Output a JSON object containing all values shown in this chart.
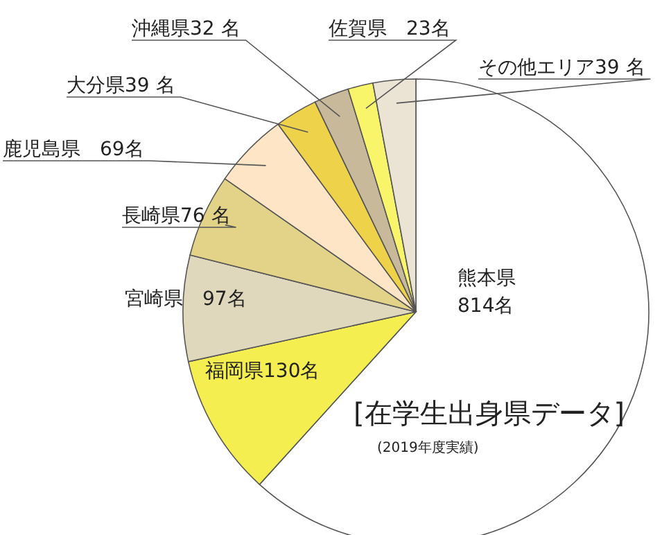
{
  "chart_data": {
    "type": "pie",
    "title": "[在学生出身県データ]",
    "subtitle": "(2019年度実績)",
    "categories": [
      "熊本県",
      "福岡県",
      "宮崎県",
      "長崎県",
      "鹿児島県",
      "大分県",
      "沖縄県",
      "佐賀県",
      "その他エリア"
    ],
    "values": [
      814,
      130,
      97,
      76,
      69,
      39,
      32,
      23,
      39
    ],
    "value_labels": [
      "814名",
      "130名",
      "　97名",
      "76 名",
      "　69名",
      "39 名",
      "32 名",
      "　23名",
      "39 名"
    ],
    "colors": [
      "#ffffff",
      "#f4ee50",
      "#e0d8bc",
      "#e3d388",
      "#fde5c6",
      "#eed24a",
      "#c7b99a",
      "#f9f56a",
      "#ebe4d4"
    ]
  }
}
